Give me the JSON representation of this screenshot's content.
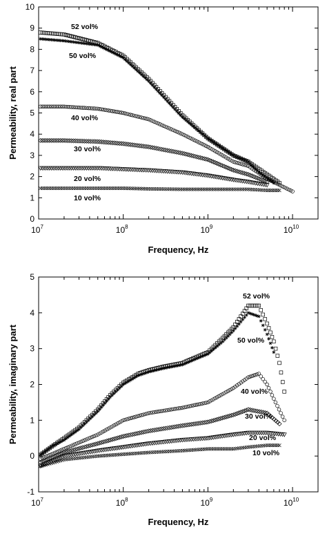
{
  "chart_data": [
    {
      "type": "scatter",
      "xlabel": "Frequency, Hz",
      "ylabel": "Permeability, real part",
      "x_scale": "log",
      "xlim": [
        10000000,
        20000000000
      ],
      "ylim": [
        0,
        10
      ],
      "x_ticks": [
        {
          "base": "10",
          "exp": "7"
        },
        {
          "base": "10",
          "exp": "8"
        },
        {
          "base": "10",
          "exp": "9"
        },
        {
          "base": "10",
          "exp": "10"
        }
      ],
      "y_ticks": [
        "0",
        "1",
        "2",
        "3",
        "4",
        "5",
        "6",
        "7",
        "8",
        "9",
        "10"
      ],
      "series": [
        {
          "name": "52 vol%",
          "marker": "square",
          "x": [
            10000000,
            20000000,
            50000000,
            100000000,
            200000000,
            500000000,
            1000000000,
            2000000000,
            3000000000,
            5000000000,
            7000000000
          ],
          "y": [
            8.8,
            8.7,
            8.3,
            7.7,
            6.6,
            4.9,
            3.8,
            3.0,
            2.7,
            2.1,
            1.7
          ]
        },
        {
          "name": "50 vol%",
          "marker": "star",
          "x": [
            10000000,
            20000000,
            50000000,
            100000000,
            200000000,
            500000000,
            1000000000,
            2000000000,
            3000000000,
            4000000000,
            6000000000
          ],
          "y": [
            8.5,
            8.4,
            8.2,
            7.6,
            6.5,
            4.8,
            3.8,
            3.0,
            2.7,
            2.2,
            1.7
          ]
        },
        {
          "name": "40 vol%",
          "marker": "circle",
          "x": [
            10000000,
            20000000,
            50000000,
            100000000,
            200000000,
            500000000,
            1000000000,
            2000000000,
            3000000000,
            5000000000,
            10000000000
          ],
          "y": [
            5.3,
            5.3,
            5.2,
            5.0,
            4.7,
            4.0,
            3.4,
            2.7,
            2.5,
            1.9,
            1.3
          ]
        },
        {
          "name": "30 vol%",
          "marker": "diamond",
          "x": [
            10000000,
            20000000,
            50000000,
            100000000,
            200000000,
            500000000,
            1000000000,
            2000000000,
            3000000000,
            5000000000
          ],
          "y": [
            3.7,
            3.7,
            3.65,
            3.55,
            3.4,
            3.1,
            2.8,
            2.3,
            2.1,
            1.75
          ]
        },
        {
          "name": "20 vol%",
          "marker": "triangle-down",
          "x": [
            10000000,
            20000000,
            50000000,
            100000000,
            200000000,
            500000000,
            1000000000,
            2000000000,
            3000000000,
            5000000000
          ],
          "y": [
            2.4,
            2.4,
            2.4,
            2.35,
            2.3,
            2.2,
            2.05,
            1.85,
            1.75,
            1.6
          ]
        },
        {
          "name": "10 vol%",
          "marker": "x",
          "x": [
            10000000,
            20000000,
            50000000,
            100000000,
            200000000,
            500000000,
            1000000000,
            2000000000,
            3000000000,
            5000000000,
            7000000000
          ],
          "y": [
            1.45,
            1.45,
            1.45,
            1.45,
            1.42,
            1.4,
            1.4,
            1.4,
            1.4,
            1.35,
            1.35
          ]
        }
      ]
    },
    {
      "type": "scatter",
      "xlabel": "Frequency, Hz",
      "ylabel": "Permeability, imaginary part",
      "x_scale": "log",
      "xlim": [
        10000000,
        20000000000
      ],
      "ylim": [
        -1,
        5
      ],
      "x_ticks": [
        {
          "base": "10",
          "exp": "7"
        },
        {
          "base": "10",
          "exp": "8"
        },
        {
          "base": "10",
          "exp": "9"
        },
        {
          "base": "10",
          "exp": "10"
        }
      ],
      "y_ticks": [
        "-1",
        "0",
        "1",
        "2",
        "3",
        "4",
        "5"
      ],
      "series": [
        {
          "name": "52 vol%",
          "marker": "square",
          "x": [
            10000000,
            15000000,
            20000000,
            30000000,
            50000000,
            70000000,
            100000000,
            150000000,
            200000000,
            300000000,
            500000000,
            700000000,
            1000000000,
            1500000000,
            2000000000,
            3000000000,
            4000000000,
            5000000000,
            6000000000,
            7000000000,
            8000000000
          ],
          "y": [
            0.0,
            0.3,
            0.5,
            0.8,
            1.3,
            1.7,
            2.05,
            2.3,
            2.4,
            2.5,
            2.6,
            2.75,
            2.9,
            3.3,
            3.6,
            4.2,
            4.2,
            3.7,
            3.2,
            2.6,
            1.8
          ]
        },
        {
          "name": "50 vol%",
          "marker": "star",
          "x": [
            10000000,
            15000000,
            20000000,
            30000000,
            50000000,
            70000000,
            100000000,
            150000000,
            200000000,
            300000000,
            500000000,
            700000000,
            1000000000,
            1500000000,
            2000000000,
            3000000000,
            4000000000,
            5000000000,
            6000000000
          ],
          "y": [
            0.0,
            0.3,
            0.45,
            0.75,
            1.25,
            1.65,
            2.0,
            2.25,
            2.35,
            2.45,
            2.55,
            2.7,
            2.85,
            3.2,
            3.5,
            4.0,
            3.9,
            3.4,
            2.9
          ]
        },
        {
          "name": "40 vol%",
          "marker": "circle",
          "x": [
            10000000,
            20000000,
            50000000,
            100000000,
            200000000,
            500000000,
            1000000000,
            2000000000,
            3000000000,
            4000000000,
            5000000000,
            6000000000,
            8000000000
          ],
          "y": [
            -0.1,
            0.2,
            0.6,
            1.0,
            1.2,
            1.35,
            1.5,
            1.9,
            2.2,
            2.3,
            2.0,
            1.6,
            1.0
          ]
        },
        {
          "name": "30 vol%",
          "marker": "diamond",
          "x": [
            10000000,
            20000000,
            50000000,
            100000000,
            200000000,
            500000000,
            1000000000,
            2000000000,
            3000000000,
            5000000000,
            7000000000
          ],
          "y": [
            -0.2,
            0.1,
            0.35,
            0.55,
            0.7,
            0.85,
            0.95,
            1.15,
            1.3,
            1.2,
            0.9
          ]
        },
        {
          "name": "20 vol%",
          "marker": "triangle-down",
          "x": [
            10000000,
            20000000,
            50000000,
            100000000,
            200000000,
            500000000,
            1000000000,
            2000000000,
            3000000000,
            5000000000,
            8000000000
          ],
          "y": [
            -0.3,
            0.0,
            0.15,
            0.25,
            0.35,
            0.45,
            0.5,
            0.6,
            0.65,
            0.65,
            0.6
          ]
        },
        {
          "name": "10 vol%",
          "marker": "x",
          "x": [
            10000000,
            20000000,
            50000000,
            100000000,
            200000000,
            500000000,
            1000000000,
            2000000000,
            3000000000,
            5000000000,
            7000000000
          ],
          "y": [
            -0.3,
            -0.1,
            0.0,
            0.05,
            0.1,
            0.15,
            0.2,
            0.2,
            0.25,
            0.3,
            0.3
          ]
        }
      ]
    }
  ]
}
